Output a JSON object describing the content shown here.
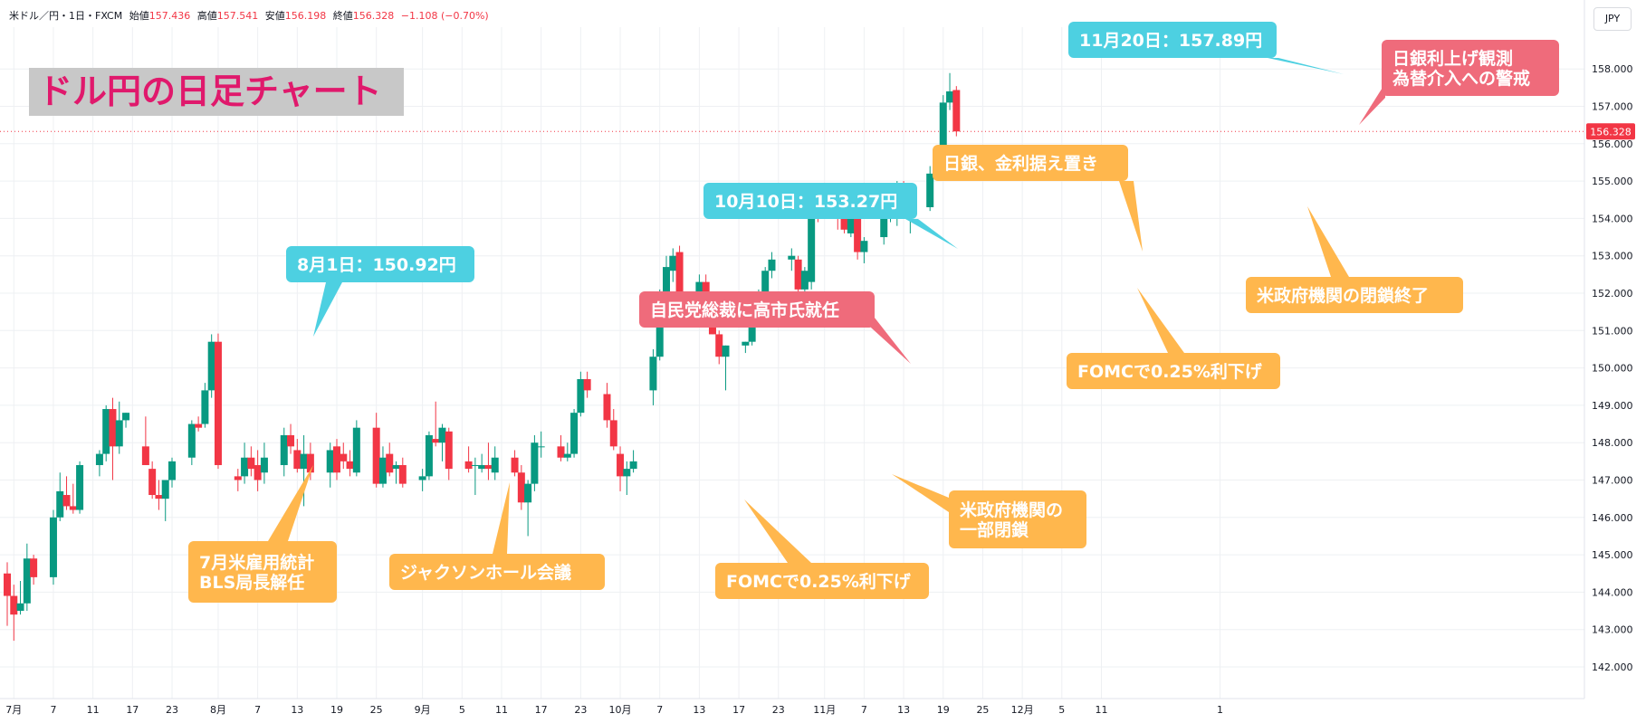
{
  "header": {
    "symbol": "米ドル／円・1日・FXCM",
    "open_label": "始値",
    "open": "157.436",
    "high_label": "高値",
    "high": "157.541",
    "low_label": "安値",
    "low": "156.198",
    "close_label": "終値",
    "close": "156.328",
    "change": "−1.108 (−0.70%)"
  },
  "currency_button": "JPY",
  "title": "ドル円の日足チャート",
  "colors": {
    "up": "#089981",
    "down": "#f23645",
    "orange": "#ffb74d",
    "cyan": "#4dd0e1",
    "pink": "#ef6b7b",
    "title": "#e0196c"
  },
  "chart_data": {
    "type": "candlestick",
    "y_range": [
      141.6,
      158.9
    ],
    "y_ticks": [
      "142.000",
      "143.000",
      "144.000",
      "145.000",
      "146.000",
      "147.000",
      "148.000",
      "149.000",
      "150.000",
      "151.000",
      "152.000",
      "153.000",
      "154.000",
      "155.000",
      "156.000",
      "157.000",
      "158.000"
    ],
    "last_price": "156.328",
    "x_labels": [
      "7月",
      "7",
      "11",
      "17",
      "23",
      "8月",
      "7",
      "13",
      "19",
      "25",
      "9月",
      "5",
      "11",
      "17",
      "23",
      "10月",
      "7",
      "13",
      "17",
      "23",
      "11月",
      "7",
      "13",
      "19",
      "25",
      "12月",
      "5",
      "11",
      "1"
    ],
    "candles": [
      {
        "d": "2025-06-30",
        "o": 144.5,
        "h": 144.8,
        "l": 143.1,
        "c": 143.9
      },
      {
        "d": "2025-07-01",
        "o": 143.9,
        "h": 144.2,
        "l": 142.7,
        "c": 143.4
      },
      {
        "d": "2025-07-02",
        "o": 143.5,
        "h": 144.3,
        "l": 143.4,
        "c": 143.7
      },
      {
        "d": "2025-07-03",
        "o": 143.7,
        "h": 145.3,
        "l": 143.5,
        "c": 144.9
      },
      {
        "d": "2025-07-04",
        "o": 144.9,
        "h": 145.0,
        "l": 144.2,
        "c": 144.4
      },
      {
        "d": "2025-07-07",
        "o": 144.4,
        "h": 146.2,
        "l": 144.2,
        "c": 146.0
      },
      {
        "d": "2025-07-08",
        "o": 146.0,
        "h": 147.2,
        "l": 145.9,
        "c": 146.7
      },
      {
        "d": "2025-07-09",
        "o": 146.6,
        "h": 147.1,
        "l": 146.2,
        "c": 146.3
      },
      {
        "d": "2025-07-10",
        "o": 146.3,
        "h": 146.9,
        "l": 146.1,
        "c": 146.2
      },
      {
        "d": "2025-07-11",
        "o": 146.2,
        "h": 147.5,
        "l": 146.1,
        "c": 147.4
      },
      {
        "d": "2025-07-14",
        "o": 147.4,
        "h": 147.8,
        "l": 147.1,
        "c": 147.7
      },
      {
        "d": "2025-07-15",
        "o": 147.7,
        "h": 149.0,
        "l": 147.5,
        "c": 148.9
      },
      {
        "d": "2025-07-16",
        "o": 148.9,
        "h": 149.2,
        "l": 147.0,
        "c": 147.9
      },
      {
        "d": "2025-07-17",
        "o": 147.9,
        "h": 149.1,
        "l": 147.7,
        "c": 148.6
      },
      {
        "d": "2025-07-18",
        "o": 148.6,
        "h": 148.8,
        "l": 148.4,
        "c": 148.8
      },
      {
        "d": "2025-07-21",
        "o": 147.9,
        "h": 148.7,
        "l": 147.4,
        "c": 147.4
      },
      {
        "d": "2025-07-22",
        "o": 147.3,
        "h": 147.5,
        "l": 146.5,
        "c": 146.6
      },
      {
        "d": "2025-07-23",
        "o": 146.6,
        "h": 147.0,
        "l": 146.2,
        "c": 146.5
      },
      {
        "d": "2025-07-24",
        "o": 146.5,
        "h": 147.0,
        "l": 145.9,
        "c": 147.0
      },
      {
        "d": "2025-07-25",
        "o": 147.0,
        "h": 147.6,
        "l": 146.8,
        "c": 147.5
      },
      {
        "d": "2025-07-28",
        "o": 147.6,
        "h": 148.6,
        "l": 147.4,
        "c": 148.5
      },
      {
        "d": "2025-07-29",
        "o": 148.5,
        "h": 148.7,
        "l": 148.3,
        "c": 148.4
      },
      {
        "d": "2025-07-30",
        "o": 148.5,
        "h": 149.6,
        "l": 148.4,
        "c": 149.4
      },
      {
        "d": "2025-07-31",
        "o": 149.4,
        "h": 150.9,
        "l": 149.2,
        "c": 150.7
      },
      {
        "d": "2025-08-01",
        "o": 150.7,
        "h": 150.92,
        "l": 147.3,
        "c": 147.4
      },
      {
        "d": "2025-08-04",
        "o": 147.1,
        "h": 147.3,
        "l": 146.7,
        "c": 147.0
      },
      {
        "d": "2025-08-05",
        "o": 147.1,
        "h": 148.0,
        "l": 146.9,
        "c": 147.6
      },
      {
        "d": "2025-08-06",
        "o": 147.6,
        "h": 147.9,
        "l": 147.1,
        "c": 147.3
      },
      {
        "d": "2025-08-07",
        "o": 147.4,
        "h": 147.8,
        "l": 146.7,
        "c": 147.0
      },
      {
        "d": "2025-08-08",
        "o": 147.2,
        "h": 148.0,
        "l": 146.9,
        "c": 147.6
      },
      {
        "d": "2025-08-11",
        "o": 147.4,
        "h": 148.4,
        "l": 147.1,
        "c": 148.2
      },
      {
        "d": "2025-08-12",
        "o": 148.2,
        "h": 148.5,
        "l": 147.7,
        "c": 147.9
      },
      {
        "d": "2025-08-13",
        "o": 147.8,
        "h": 148.1,
        "l": 147.2,
        "c": 147.3
      },
      {
        "d": "2025-08-14",
        "o": 147.3,
        "h": 148.2,
        "l": 146.3,
        "c": 147.7
      },
      {
        "d": "2025-08-15",
        "o": 147.7,
        "h": 148.0,
        "l": 147.0,
        "c": 147.2
      },
      {
        "d": "2025-08-18",
        "o": 147.2,
        "h": 148.0,
        "l": 146.8,
        "c": 147.8
      },
      {
        "d": "2025-08-19",
        "o": 147.9,
        "h": 148.1,
        "l": 147.0,
        "c": 147.2
      },
      {
        "d": "2025-08-20",
        "o": 147.7,
        "h": 148.0,
        "l": 147.3,
        "c": 147.5
      },
      {
        "d": "2025-08-21",
        "o": 147.5,
        "h": 147.8,
        "l": 147.1,
        "c": 147.3
      },
      {
        "d": "2025-08-22",
        "o": 147.2,
        "h": 148.6,
        "l": 147.1,
        "c": 148.4
      },
      {
        "d": "2025-08-25",
        "o": 148.4,
        "h": 148.8,
        "l": 146.8,
        "c": 146.9
      },
      {
        "d": "2025-08-26",
        "o": 146.9,
        "h": 147.9,
        "l": 146.8,
        "c": 147.6
      },
      {
        "d": "2025-08-27",
        "o": 147.7,
        "h": 148.0,
        "l": 147.1,
        "c": 147.2
      },
      {
        "d": "2025-08-28",
        "o": 147.3,
        "h": 147.5,
        "l": 146.9,
        "c": 147.4
      },
      {
        "d": "2025-08-29",
        "o": 147.4,
        "h": 147.6,
        "l": 146.8,
        "c": 146.9
      },
      {
        "d": "2025-09-01",
        "o": 147.0,
        "h": 147.3,
        "l": 146.7,
        "c": 147.1
      },
      {
        "d": "2025-09-02",
        "o": 147.1,
        "h": 148.3,
        "l": 147.0,
        "c": 148.2
      },
      {
        "d": "2025-09-03",
        "o": 148.1,
        "h": 149.1,
        "l": 147.9,
        "c": 148.0
      },
      {
        "d": "2025-09-04",
        "o": 148.0,
        "h": 148.5,
        "l": 147.5,
        "c": 148.4
      },
      {
        "d": "2025-09-05",
        "o": 148.3,
        "h": 148.4,
        "l": 147.0,
        "c": 147.3
      },
      {
        "d": "2025-09-08",
        "o": 147.5,
        "h": 147.9,
        "l": 147.2,
        "c": 147.3
      },
      {
        "d": "2025-09-09",
        "o": 147.4,
        "h": 147.6,
        "l": 146.6,
        "c": 147.4
      },
      {
        "d": "2025-09-10",
        "o": 147.3,
        "h": 147.7,
        "l": 147.2,
        "c": 147.4
      },
      {
        "d": "2025-09-11",
        "o": 147.4,
        "h": 148.0,
        "l": 147.0,
        "c": 147.3
      },
      {
        "d": "2025-09-12",
        "o": 147.2,
        "h": 147.9,
        "l": 147.0,
        "c": 147.6
      },
      {
        "d": "2025-09-15",
        "o": 147.6,
        "h": 147.8,
        "l": 147.1,
        "c": 147.2
      },
      {
        "d": "2025-09-16",
        "o": 147.2,
        "h": 147.4,
        "l": 146.2,
        "c": 146.4
      },
      {
        "d": "2025-09-17",
        "o": 146.4,
        "h": 147.0,
        "l": 145.5,
        "c": 146.9
      },
      {
        "d": "2025-09-18",
        "o": 146.9,
        "h": 148.2,
        "l": 146.7,
        "c": 148.0
      },
      {
        "d": "2025-09-19",
        "o": 147.9,
        "h": 148.3,
        "l": 147.6,
        "c": 147.9
      },
      {
        "d": "2025-09-22",
        "o": 147.9,
        "h": 148.2,
        "l": 147.5,
        "c": 147.6
      },
      {
        "d": "2025-09-23",
        "o": 147.6,
        "h": 148.0,
        "l": 147.5,
        "c": 147.7
      },
      {
        "d": "2025-09-24",
        "o": 147.7,
        "h": 148.9,
        "l": 147.6,
        "c": 148.8
      },
      {
        "d": "2025-09-25",
        "o": 148.8,
        "h": 149.9,
        "l": 148.7,
        "c": 149.7
      },
      {
        "d": "2025-09-26",
        "o": 149.7,
        "h": 149.9,
        "l": 149.2,
        "c": 149.4
      },
      {
        "d": "2025-09-29",
        "o": 149.3,
        "h": 149.6,
        "l": 148.4,
        "c": 148.6
      },
      {
        "d": "2025-09-30",
        "o": 148.6,
        "h": 148.9,
        "l": 147.8,
        "c": 147.9
      },
      {
        "d": "2025-10-01",
        "o": 147.7,
        "h": 147.9,
        "l": 146.7,
        "c": 147.1
      },
      {
        "d": "2025-10-02",
        "o": 147.1,
        "h": 147.5,
        "l": 146.6,
        "c": 147.3
      },
      {
        "d": "2025-10-03",
        "o": 147.3,
        "h": 147.8,
        "l": 147.2,
        "c": 147.5
      },
      {
        "d": "2025-10-06",
        "o": 149.4,
        "h": 150.5,
        "l": 149.0,
        "c": 150.3
      },
      {
        "d": "2025-10-07",
        "o": 150.3,
        "h": 152.1,
        "l": 150.2,
        "c": 151.9
      },
      {
        "d": "2025-10-08",
        "o": 151.9,
        "h": 153.0,
        "l": 151.8,
        "c": 152.7
      },
      {
        "d": "2025-10-09",
        "o": 152.6,
        "h": 153.2,
        "l": 152.3,
        "c": 153.0
      },
      {
        "d": "2025-10-10",
        "o": 153.1,
        "h": 153.27,
        "l": 151.1,
        "c": 151.2
      },
      {
        "d": "2025-10-13",
        "o": 151.7,
        "h": 152.5,
        "l": 151.4,
        "c": 152.3
      },
      {
        "d": "2025-10-14",
        "o": 152.3,
        "h": 152.5,
        "l": 151.6,
        "c": 151.7
      },
      {
        "d": "2025-10-15",
        "o": 151.7,
        "h": 151.8,
        "l": 150.9,
        "c": 150.9
      },
      {
        "d": "2025-10-16",
        "o": 150.9,
        "h": 151.0,
        "l": 150.1,
        "c": 150.3
      },
      {
        "d": "2025-10-17",
        "o": 150.3,
        "h": 150.6,
        "l": 149.4,
        "c": 150.6
      },
      {
        "d": "2025-10-20",
        "o": 150.6,
        "h": 150.7,
        "l": 150.4,
        "c": 150.7
      },
      {
        "d": "2025-10-21",
        "o": 150.7,
        "h": 152.0,
        "l": 150.6,
        "c": 151.9
      },
      {
        "d": "2025-10-22",
        "o": 151.9,
        "h": 152.1,
        "l": 151.6,
        "c": 151.9
      },
      {
        "d": "2025-10-23",
        "o": 151.9,
        "h": 152.7,
        "l": 151.7,
        "c": 152.6
      },
      {
        "d": "2025-10-24",
        "o": 152.6,
        "h": 153.1,
        "l": 152.4,
        "c": 152.9
      },
      {
        "d": "2025-10-27",
        "o": 152.9,
        "h": 153.2,
        "l": 152.6,
        "c": 153.0
      },
      {
        "d": "2025-10-28",
        "o": 152.9,
        "h": 153.0,
        "l": 151.9,
        "c": 152.1
      },
      {
        "d": "2025-10-29",
        "o": 152.1,
        "h": 152.7,
        "l": 151.6,
        "c": 152.6
      },
      {
        "d": "2025-10-30",
        "o": 152.3,
        "h": 154.4,
        "l": 152.1,
        "c": 154.1
      },
      {
        "d": "2025-10-31",
        "o": 154.1,
        "h": 154.4,
        "l": 153.9,
        "c": 154.0
      },
      {
        "d": "2025-11-03",
        "o": 154.2,
        "h": 154.5,
        "l": 153.7,
        "c": 154.1
      },
      {
        "d": "2025-11-04",
        "o": 154.2,
        "h": 154.4,
        "l": 153.6,
        "c": 153.7
      },
      {
        "d": "2025-11-05",
        "o": 153.6,
        "h": 154.3,
        "l": 153.5,
        "c": 154.1
      },
      {
        "d": "2025-11-06",
        "o": 154.1,
        "h": 154.2,
        "l": 152.9,
        "c": 153.1
      },
      {
        "d": "2025-11-07",
        "o": 153.1,
        "h": 153.5,
        "l": 152.8,
        "c": 153.4
      },
      {
        "d": "2025-11-10",
        "o": 153.5,
        "h": 154.2,
        "l": 153.3,
        "c": 154.1
      },
      {
        "d": "2025-11-11",
        "o": 154.1,
        "h": 154.3,
        "l": 153.9,
        "c": 154.1
      },
      {
        "d": "2025-11-12",
        "o": 154.1,
        "h": 155.0,
        "l": 153.8,
        "c": 154.8
      },
      {
        "d": "2025-11-13",
        "o": 154.8,
        "h": 155.0,
        "l": 154.4,
        "c": 154.5
      },
      {
        "d": "2025-11-14",
        "o": 154.5,
        "h": 154.6,
        "l": 153.6,
        "c": 154.5
      },
      {
        "d": "2025-11-17",
        "o": 154.3,
        "h": 155.4,
        "l": 154.2,
        "c": 155.2
      },
      {
        "d": "2025-11-18",
        "o": 155.2,
        "h": 155.8,
        "l": 155.1,
        "c": 155.5
      },
      {
        "d": "2025-11-19",
        "o": 155.5,
        "h": 157.3,
        "l": 155.4,
        "c": 157.1
      },
      {
        "d": "2025-11-20",
        "o": 157.1,
        "h": 157.89,
        "l": 156.9,
        "c": 157.4
      },
      {
        "d": "2025-11-21",
        "o": 157.436,
        "h": 157.541,
        "l": 156.198,
        "c": 156.328
      }
    ]
  },
  "annotations": [
    {
      "key": "a1",
      "lines": [
        "8月1日：150.92円"
      ]
    },
    {
      "key": "a2",
      "lines": [
        "7月米雇用統計",
        "BLS局長解任"
      ]
    },
    {
      "key": "a3",
      "lines": [
        "ジャクソンホール会議"
      ]
    },
    {
      "key": "a4",
      "lines": [
        "FOMCで0.25%利下げ"
      ]
    },
    {
      "key": "a5",
      "lines": [
        "米政府機関の",
        "一部閉鎖"
      ]
    },
    {
      "key": "a6",
      "lines": [
        "自民党総裁に高市氏就任"
      ]
    },
    {
      "key": "a7",
      "lines": [
        "10月10日：153.27円"
      ]
    },
    {
      "key": "a8",
      "lines": [
        "日銀、金利据え置き"
      ]
    },
    {
      "key": "a9",
      "lines": [
        "FOMCで0.25%利下げ"
      ]
    },
    {
      "key": "a10",
      "lines": [
        "11月20日：157.89円"
      ]
    },
    {
      "key": "a11",
      "lines": [
        "日銀利上げ観測",
        "為替介入への警戒"
      ]
    },
    {
      "key": "a12",
      "lines": [
        "米政府機関の閉鎖終了"
      ]
    }
  ]
}
